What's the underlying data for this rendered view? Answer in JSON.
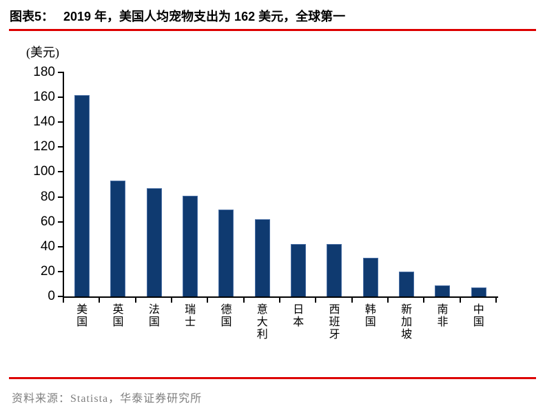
{
  "figure": {
    "label": "图表5：",
    "title": "2019 年，美国人均宠物支出为 162 美元，全球第一"
  },
  "chart_data": {
    "type": "bar",
    "title": "2019 年，美国人均宠物支出为 162 美元，全球第一",
    "unit_label": "(美元)",
    "categories": [
      "美国",
      "英国",
      "法国",
      "瑞士",
      "德国",
      "意大利",
      "日本",
      "西班牙",
      "韩国",
      "新加坡",
      "南非",
      "中国"
    ],
    "values": [
      162,
      93,
      87,
      81,
      70,
      62,
      42,
      42,
      31,
      20,
      9,
      7
    ],
    "ylim": [
      0,
      180
    ],
    "yticks": [
      0,
      20,
      40,
      60,
      80,
      100,
      120,
      140,
      160,
      180
    ],
    "grid": false,
    "legend_position": "none",
    "bar_color": "#0F3A70",
    "bar_border_color": "#4A6FA5",
    "axis_color": "#000000"
  },
  "source": {
    "text": "资料来源：Statista，华泰证券研究所"
  },
  "colors": {
    "rule_red": "#DD0000",
    "source_gray": "#7F7F7F",
    "title_black": "#000000",
    "background": "#FFFFFF"
  }
}
